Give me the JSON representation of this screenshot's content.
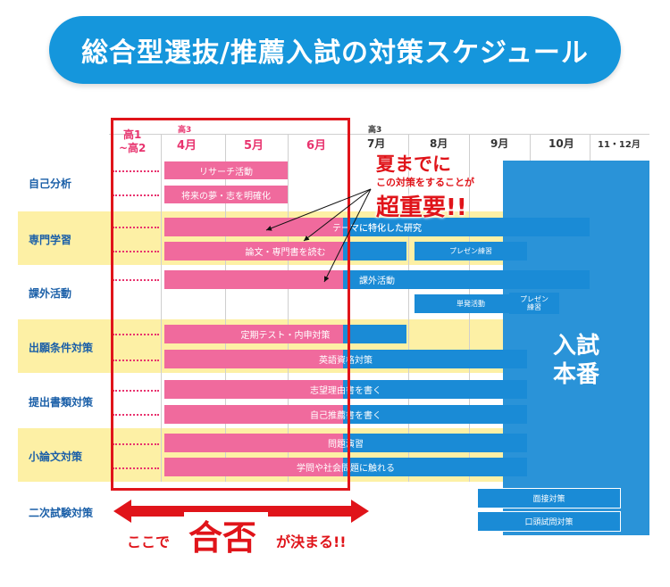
{
  "title": "総合型選抜/推薦入試の対策スケジュール",
  "header": {
    "kou1": "高1",
    "kou2": "~高2",
    "kou3_a": "高3",
    "kou3_b": "高3",
    "months": [
      "4月",
      "5月",
      "6月",
      "7月",
      "8月",
      "9月",
      "10月",
      "11・12月"
    ]
  },
  "rows": {
    "jiko": "自己分析",
    "senmon": "専門学習",
    "kagai": "課外活動",
    "shutsugan": "出願条件対策",
    "teishutsu": "提出書類対策",
    "shoronbun": "小論文対策",
    "niji": "二次試験対策"
  },
  "bars": {
    "research": "リサーチ活動",
    "dream": "将来の夢・志を明確化",
    "theme": "テーマに特化した研究",
    "read": "論文・専門書を読む",
    "presen1": "プレゼン練習",
    "kagai": "課外活動",
    "tanpatsu": "単発活動",
    "presen2_a": "プレゼン",
    "presen2_b": "練習",
    "teiki": "定期テスト・内申対策",
    "eigo": "英語資格対策",
    "shibou": "志望理由書を書く",
    "jikosuisen": "自己推薦書を書く",
    "mondai": "問題演習",
    "gakumon": "学問や社会問題に触れる",
    "mensetsu": "面接対策",
    "koutou": "口頭試問対策"
  },
  "exam": {
    "line1": "入試",
    "line2": "本番"
  },
  "callout": {
    "line1": "夏までに",
    "line2": "この対策をすることが",
    "line3": "超重要!!"
  },
  "bottom": {
    "pre": "ここで",
    "big": "合否",
    "post": "が決まる!!"
  },
  "colors": {
    "blue": "#1a8bd6",
    "pink": "#f06a9d",
    "red": "#e0141a",
    "yellow": "#fdf0a5",
    "title": "#1596dc"
  }
}
